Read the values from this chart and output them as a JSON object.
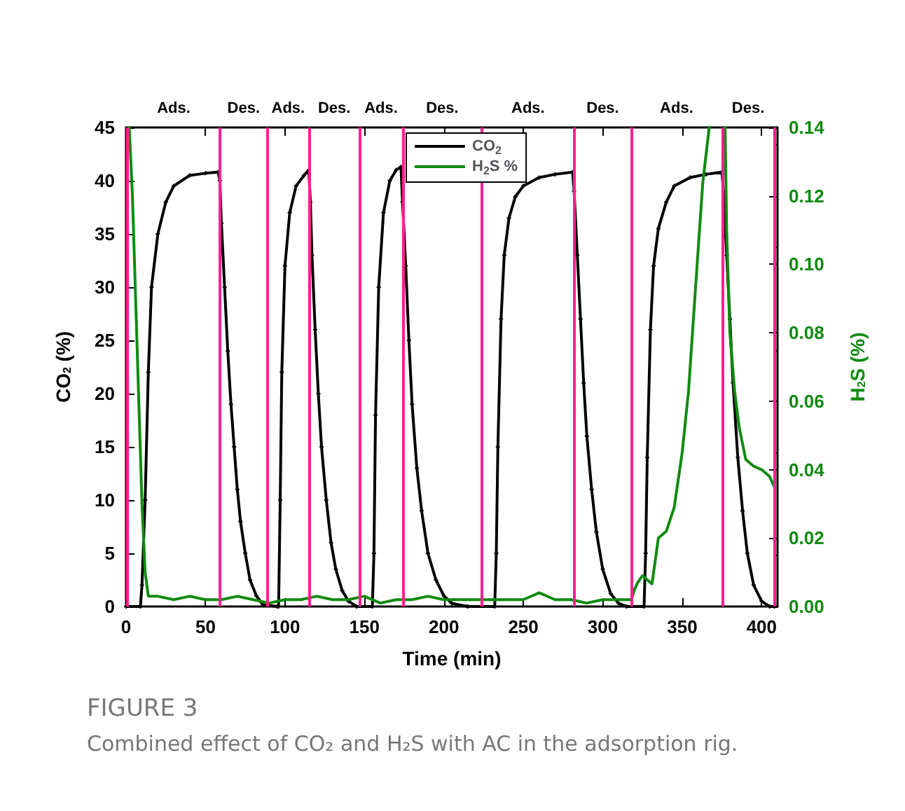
{
  "chart_data": {
    "type": "line",
    "xlabel": "Time (min)",
    "ylabel": "CO$_{2}$ (%)",
    "y2label": "H$_{2}$S (%)",
    "xlim": [
      0,
      410
    ],
    "xticks": [
      0,
      50,
      100,
      150,
      200,
      250,
      300,
      350,
      400
    ],
    "ylim": [
      0,
      45
    ],
    "yticks": [
      0,
      5,
      10,
      15,
      20,
      25,
      30,
      35,
      40,
      45
    ],
    "y2lim": [
      0,
      0.14
    ],
    "y2ticks": [
      {
        "value": 0,
        "label": "0.00"
      },
      {
        "value": 0.02,
        "label": "0.02"
      },
      {
        "value": 0.04,
        "label": "0.04"
      },
      {
        "value": 0.06,
        "label": "0.06"
      },
      {
        "value": 0.08,
        "label": "0.08"
      },
      {
        "value": 0.1,
        "label": "0.10"
      },
      {
        "value": 0.12,
        "label": "0.12"
      },
      {
        "value": 0.14,
        "label": "0.14"
      }
    ],
    "grid": false,
    "legend": "top",
    "line_style": "solid",
    "series": [
      {
        "name": "CO$_{2}$",
        "color": "#000000",
        "marker": "cross",
        "x": [
          0,
          9,
          10,
          12,
          14,
          16,
          20,
          25,
          30,
          40,
          50,
          58,
          59,
          60,
          62,
          64,
          66,
          68,
          70,
          72,
          75,
          78,
          82,
          86,
          95,
          96,
          97,
          98,
          100,
          103,
          107,
          112,
          115,
          116,
          117,
          119,
          121,
          123,
          126,
          129,
          132,
          136,
          140,
          145,
          155,
          156,
          157,
          159,
          162,
          166,
          170,
          173,
          174,
          176,
          178,
          180,
          183,
          186,
          190,
          195,
          200,
          205,
          215,
          232,
          233,
          234,
          236,
          238,
          241,
          245,
          250,
          260,
          270,
          281,
          282,
          284,
          286,
          288,
          290,
          293,
          296,
          300,
          305,
          310,
          315,
          326,
          327,
          328,
          330,
          332,
          335,
          340,
          345,
          355,
          365,
          375,
          376,
          378,
          380,
          382,
          385,
          388,
          391,
          395,
          400,
          405,
          408
        ],
        "values": [
          0,
          0,
          2,
          10,
          22,
          30,
          35,
          38,
          39.5,
          40.5,
          40.7,
          40.8,
          40,
          36,
          30,
          24,
          19,
          15,
          11,
          8,
          5,
          2.5,
          1,
          0.2,
          0,
          0,
          10,
          22,
          32,
          37,
          39.5,
          40.5,
          41,
          38,
          33,
          26,
          20,
          15,
          10,
          6,
          3.5,
          1.5,
          0.5,
          0,
          0,
          5,
          18,
          30,
          37,
          40,
          41,
          41.3,
          38,
          32,
          25,
          19,
          13,
          9,
          5,
          2.5,
          1,
          0.3,
          0,
          0,
          5,
          15,
          27,
          33,
          36.5,
          38.5,
          39.5,
          40.3,
          40.6,
          40.8,
          39,
          33,
          27,
          21,
          16,
          11,
          7,
          3.5,
          1.2,
          0.3,
          0,
          0,
          5,
          14,
          26,
          32,
          35.5,
          38,
          39.5,
          40.3,
          40.6,
          40.8,
          39,
          33,
          27,
          21,
          14,
          9,
          5,
          2,
          0.5,
          0,
          0
        ]
      },
      {
        "name": "H$_{2}$S %",
        "color": "#108a10",
        "axis": "y2",
        "marker": "none",
        "x": [
          2,
          4,
          6,
          8,
          10,
          12,
          14,
          20,
          30,
          40,
          50,
          60,
          70,
          80,
          90,
          100,
          110,
          120,
          130,
          140,
          150,
          160,
          170,
          180,
          190,
          200,
          210,
          220,
          230,
          240,
          250,
          260,
          270,
          280,
          290,
          300,
          310,
          318,
          320,
          322,
          325,
          331,
          335,
          340,
          345,
          350,
          354,
          360,
          363,
          367,
          370,
          377,
          378,
          380,
          383,
          386,
          390,
          395,
          400,
          405,
          408
        ],
        "values": [
          0.14,
          0.12,
          0.09,
          0.06,
          0.03,
          0.01,
          0.003,
          0.003,
          0.002,
          0.003,
          0.002,
          0.002,
          0.003,
          0.002,
          0.001,
          0.002,
          0.002,
          0.003,
          0.002,
          0.002,
          0.003,
          0.001,
          0.002,
          0.002,
          0.003,
          0.002,
          0.002,
          0.002,
          0.002,
          0.002,
          0.002,
          0.004,
          0.002,
          0.002,
          0.001,
          0.002,
          0.002,
          0.002,
          0.005,
          0.007,
          0.009,
          0.0066,
          0.02,
          0.022,
          0.029,
          0.045,
          0.063,
          0.104,
          0.124,
          0.14,
          null,
          0.14,
          0.11,
          0.08,
          0.063,
          0.052,
          0.043,
          0.041,
          0.04,
          0.038,
          0.035
        ]
      }
    ],
    "ref_lines": [
      {
        "axis": "x",
        "value": 1,
        "color": "#ff1f8f"
      },
      {
        "axis": "x",
        "value": 59,
        "color": "#ff1f8f"
      },
      {
        "axis": "x",
        "value": 89,
        "color": "#ff1f8f"
      },
      {
        "axis": "x",
        "value": 115,
        "color": "#ff1f8f"
      },
      {
        "axis": "x",
        "value": 147,
        "color": "#ff1f8f"
      },
      {
        "axis": "x",
        "value": 174,
        "color": "#ff1f8f"
      },
      {
        "axis": "x",
        "value": 224,
        "color": "#ff1f8f"
      },
      {
        "axis": "x",
        "value": 282,
        "color": "#ff1f8f"
      },
      {
        "axis": "x",
        "value": 318,
        "color": "#ff1f8f"
      },
      {
        "axis": "x",
        "value": 375,
        "color": "#ff1f8f"
      },
      {
        "axis": "x",
        "value": 408,
        "color": "#ff1f8f"
      }
    ],
    "annotations": [
      "Ads.",
      "Des.",
      "Ads.",
      "Des.",
      "Ads.",
      "Des.",
      "Ads.",
      "Des.",
      "Ads.",
      "Des.",
      "FIGURE 3",
      "Combined effect of CO₂ and H₂S with AC in the adsorption rig."
    ]
  }
}
